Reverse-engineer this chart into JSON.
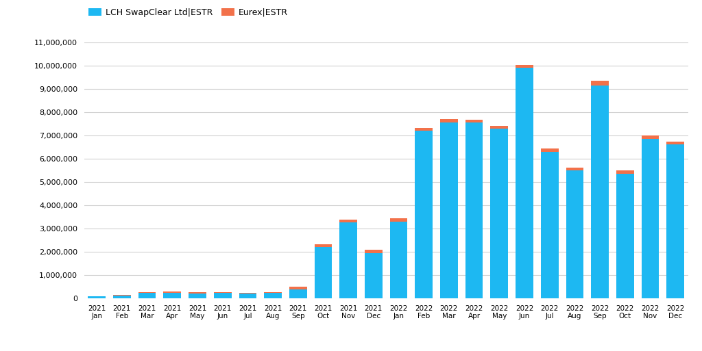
{
  "categories": [
    "2021\nJan",
    "2021\nFeb",
    "2021\nMar",
    "2021\nApr",
    "2021\nMay",
    "2021\nJun",
    "2021\nJul",
    "2021\nAug",
    "2021\nSep",
    "2021\nOct",
    "2021\nNov",
    "2021\nDec",
    "2022\nJan",
    "2022\nFeb",
    "2022\nMar",
    "2022\nApr",
    "2022\nMay",
    "2022\nJun",
    "2022\nJul",
    "2022\nAug",
    "2022\nSep",
    "2022\nOct",
    "2022\nNov",
    "2022\nDec"
  ],
  "lch_values": [
    80000,
    130000,
    230000,
    250000,
    220000,
    230000,
    210000,
    230000,
    380000,
    2200000,
    3250000,
    1950000,
    3300000,
    7200000,
    7550000,
    7550000,
    7280000,
    9900000,
    6300000,
    5500000,
    9150000,
    5350000,
    6850000,
    6600000
  ],
  "eurex_values": [
    20000,
    30000,
    50000,
    40000,
    40000,
    35000,
    35000,
    40000,
    120000,
    130000,
    120000,
    150000,
    130000,
    130000,
    150000,
    130000,
    120000,
    130000,
    130000,
    120000,
    200000,
    130000,
    150000,
    130000
  ],
  "lch_color": "#1DB8F2",
  "eurex_color": "#F2714A",
  "lch_label": "LCH SwapClear Ltd|ESTR",
  "eurex_label": "Eurex|ESTR",
  "ylim": [
    0,
    11000000
  ],
  "yticks": [
    0,
    1000000,
    2000000,
    3000000,
    4000000,
    5000000,
    6000000,
    7000000,
    8000000,
    9000000,
    10000000,
    11000000
  ],
  "background_color": "#ffffff",
  "grid_color": "#d0d0d0"
}
